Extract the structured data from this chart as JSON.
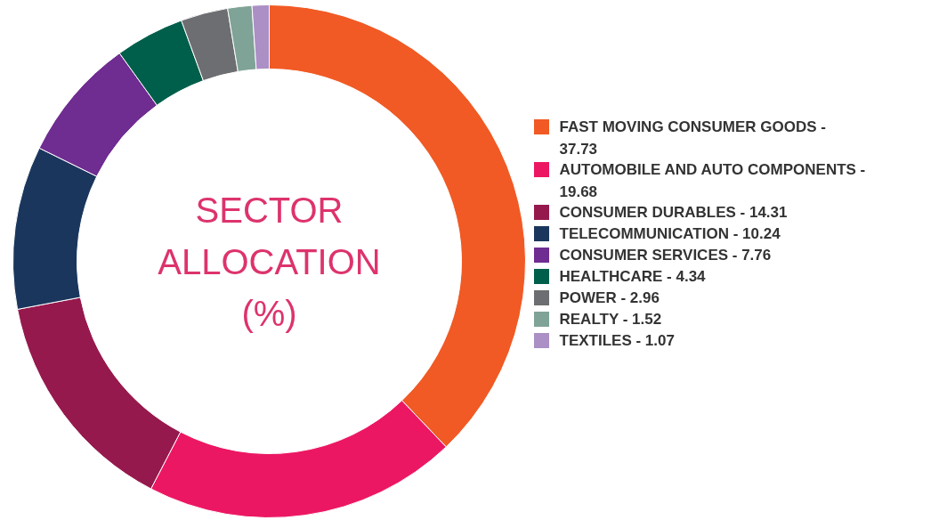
{
  "chart_data": {
    "type": "donut",
    "title": "SECTOR ALLOCATION (%)",
    "categories": [
      "FAST MOVING CONSUMER GOODS - 37.73",
      "AUTOMOBILE AND AUTO COMPONENTS - 19.68",
      "CONSUMER DURABLES - 14.31",
      "TELECOMMUNICATION - 10.24",
      "CONSUMER SERVICES - 7.76",
      "HEALTHCARE - 4.34",
      "POWER - 2.96",
      "REALTY - 1.52",
      "TEXTILES - 1.07"
    ],
    "values": [
      37.73,
      19.68,
      14.31,
      10.24,
      7.76,
      4.34,
      2.96,
      1.52,
      1.07
    ],
    "colors": [
      "#f15a24",
      "#ec1763",
      "#96194d",
      "#1b365d",
      "#6f2c91",
      "#005f4b",
      "#6d6e71",
      "#7fa396",
      "#ab8fc5"
    ],
    "legend": "right"
  }
}
